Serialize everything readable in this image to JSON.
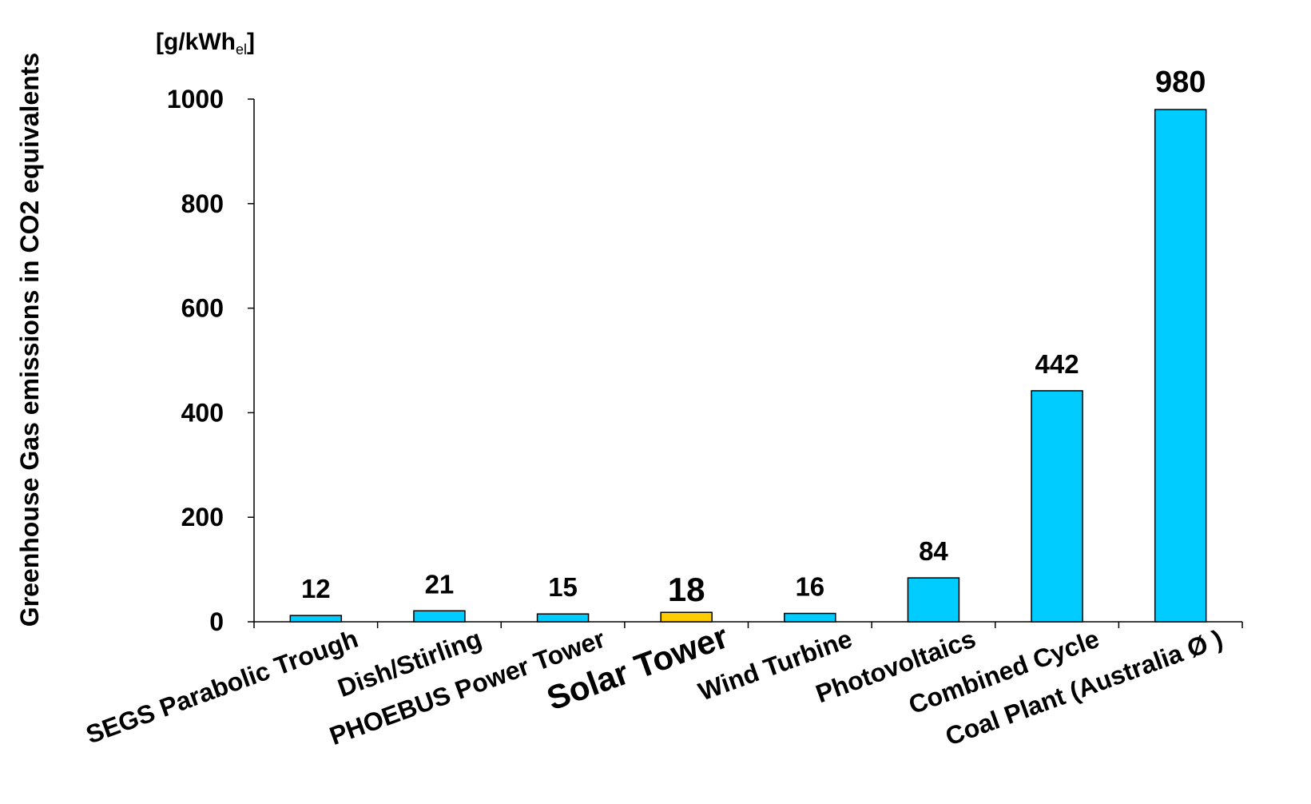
{
  "chart_data": {
    "type": "bar",
    "title": "",
    "ylabel": "Greenhouse Gas emissions in CO2 equivalents",
    "unit_label": "[g/kWh",
    "unit_sub": "el",
    "unit_close": "]",
    "ylim": [
      0,
      1000
    ],
    "yticks": [
      0,
      200,
      400,
      600,
      800,
      1000
    ],
    "categories": [
      "SEGS Parabolic Trough",
      "Dish/Stirling",
      "PHOEBUS Power Tower",
      "Solar Tower",
      "Wind Turbine",
      "Photovoltaics",
      "Combined Cycle",
      "Coal Plant (Australia Ø )"
    ],
    "values": [
      12,
      21,
      15,
      18,
      16,
      84,
      442,
      980
    ],
    "highlight_index": 3,
    "colors": {
      "bar": "#00CCFF",
      "highlight": "#FFCC00",
      "outline": "#000000"
    },
    "grid": false,
    "legend": "none"
  }
}
